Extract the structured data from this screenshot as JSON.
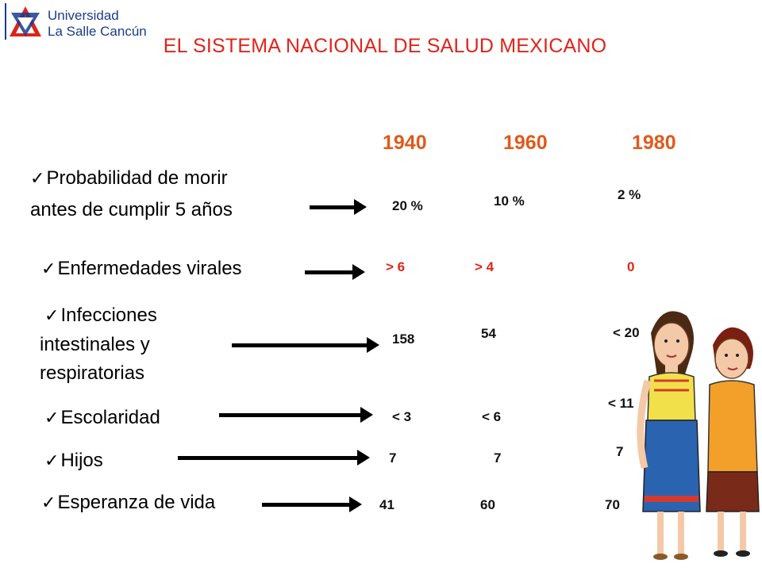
{
  "header": {
    "logo_line1": "Universidad",
    "logo_line2": "La Salle Cancún",
    "title": "EL SISTEMA NACIONAL DE SALUD MEXICANO"
  },
  "years": [
    "1940",
    "1960",
    "1980"
  ],
  "rows": [
    {
      "label_line1": "Probabilidad de morir",
      "label_line2": "antes de cumplir 5 años",
      "values": [
        "20 %",
        "10 %",
        "2 %"
      ]
    },
    {
      "label": "Enfermedades virales",
      "values": [
        "> 6",
        "> 4",
        "0"
      ]
    },
    {
      "label_line1": "Infecciones",
      "label_line2": "intestinales y",
      "label_line3": "respiratorias",
      "values": [
        "158",
        "54",
        "< 20"
      ]
    },
    {
      "label": "Escolaridad",
      "values": [
        "< 3",
        "< 6",
        "< 11"
      ]
    },
    {
      "label": "Hijos",
      "values": [
        "7",
        "7",
        "7"
      ]
    },
    {
      "label": "Esperanza de vida",
      "values": [
        "41",
        "60",
        "70"
      ]
    }
  ],
  "colors": {
    "title": "#e0241b",
    "years": "#e05a1c",
    "brand": "#1b3c8c"
  },
  "icons": {
    "check": "checkmark-icon",
    "arrow": "right-arrow-icon",
    "logo": "lasalle-star-logo"
  }
}
